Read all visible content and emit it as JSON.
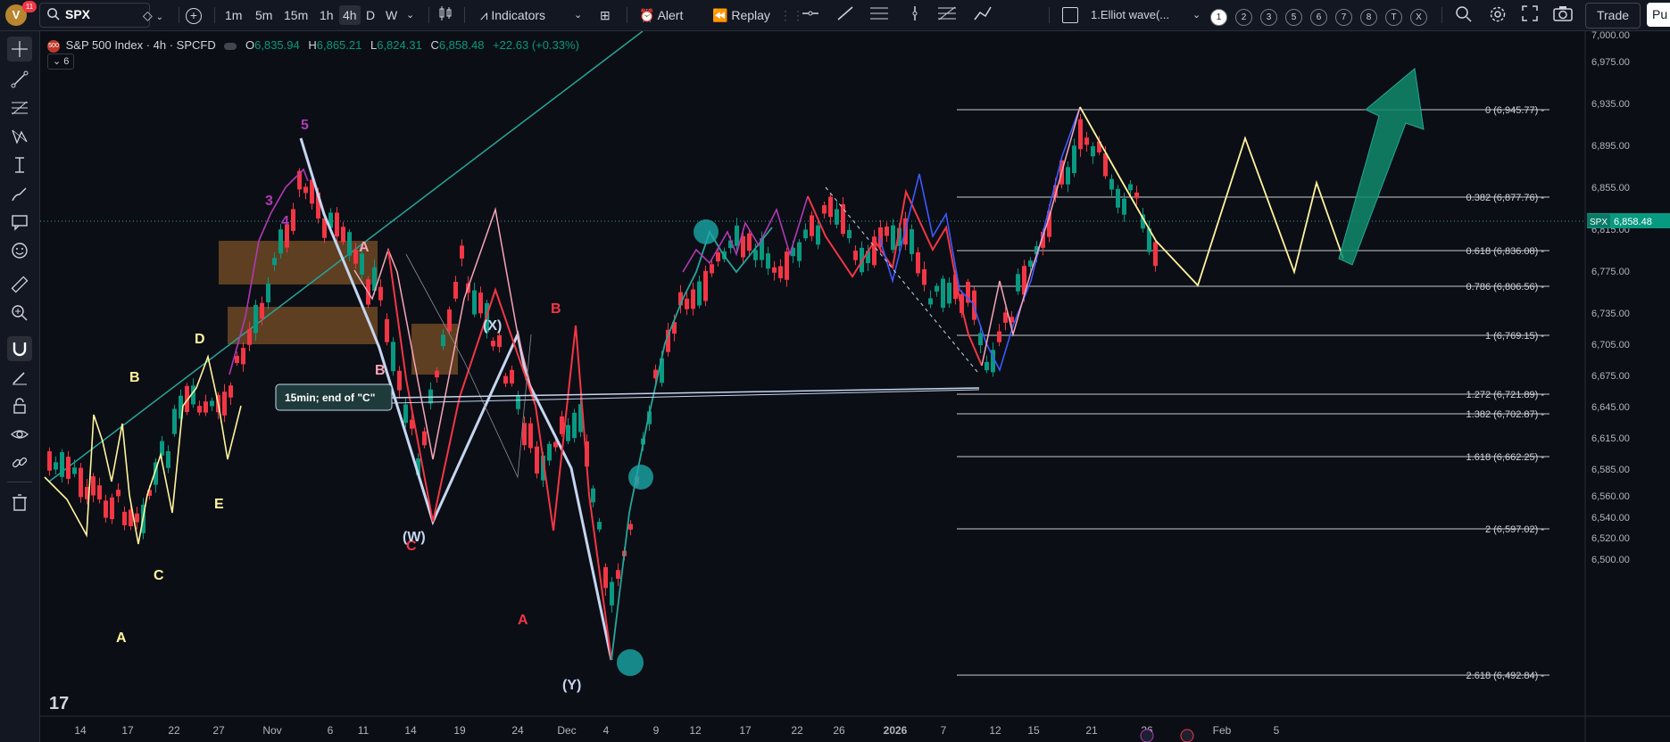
{
  "topbar": {
    "avatar_letter": "V",
    "notif_count": "11",
    "symbol": "SPX",
    "timeframes": [
      "1m",
      "5m",
      "15m",
      "1h",
      "4h",
      "D",
      "W"
    ],
    "active_timeframe": "4h",
    "indicators_label": "Indicators",
    "alert_label": "Alert",
    "replay_label": "Replay",
    "layout_name": "1.Elliot wave(...",
    "layout_tabs": [
      "1",
      "2",
      "3",
      "5",
      "6",
      "7",
      "8",
      "T",
      "X"
    ],
    "trade_label": "Trade",
    "publish_label": "Pu"
  },
  "legend": {
    "title": "S&P 500 Index · 4h · SPCFD",
    "o_label": "O",
    "o": "6,835.94",
    "h_label": "H",
    "h": "6,865.21",
    "l_label": "L",
    "l": "6,824.31",
    "c_label": "C",
    "c": "6,858.48",
    "change": "+22.63 (+0.33%)",
    "indicator_count": "6"
  },
  "price_axis": {
    "ticks": [
      "7,000.00",
      "6,975.00",
      "6,935.00",
      "6,895.00",
      "6,855.00",
      "6,815.00",
      "6,775.00",
      "6,735.00",
      "6,705.00",
      "6,675.00",
      "6,645.00",
      "6,615.00",
      "6,585.00",
      "6,560.00",
      "6,540.00",
      "6,520.00",
      "6,500.00"
    ],
    "current_symbol": "SPX",
    "current_price": "6,858.48"
  },
  "time_axis": {
    "labels": [
      "14",
      "17",
      "22",
      "27",
      "Nov",
      "6",
      "11",
      "14",
      "19",
      "24",
      "Dec",
      "4",
      "9",
      "12",
      "17",
      "22",
      "26",
      "2026",
      "7",
      "12",
      "15",
      "21",
      "26",
      "Feb",
      "5"
    ]
  },
  "fib_levels": [
    {
      "label": "0 (6,945.77)"
    },
    {
      "label": "0.382 (6,877.76)"
    },
    {
      "label": "0.618 (6,836.08)"
    },
    {
      "label": "0.786 (6,806.56)"
    },
    {
      "label": "1 (6,769.15)"
    },
    {
      "label": "1.272 (6,721.89)"
    },
    {
      "label": "1.382 (6,702.87)"
    },
    {
      "label": "1.618 (6,662.25)"
    },
    {
      "label": "2 (6,597.02)"
    },
    {
      "label": "2.618 (6,492.84)"
    }
  ],
  "annotation_note": "15min; end of \"C\"",
  "colors": {
    "bg": "#0c0e15",
    "up": "#089981",
    "down": "#f23645",
    "wave_pink": "#f7a6b8",
    "wave_yellow": "#fff59d",
    "wave_white": "#c5d6f0",
    "wave_purple": "#b03ab5",
    "wave_blue": "#3d5afe",
    "trend_teal": "#26a69a",
    "box_brown": "#7a5025"
  },
  "wave_labels": [
    {
      "text": "A",
      "color": "#fff59d"
    },
    {
      "text": "B",
      "color": "#fff59d"
    },
    {
      "text": "C",
      "color": "#fff59d"
    },
    {
      "text": "D",
      "color": "#fff59d"
    },
    {
      "text": "E",
      "color": "#fff59d"
    },
    {
      "text": "5",
      "color": "#b03ab5"
    },
    {
      "text": "3",
      "color": "#b03ab5"
    },
    {
      "text": "4",
      "color": "#b03ab5"
    },
    {
      "text": "A",
      "color": "#f7a6b8"
    },
    {
      "text": "B",
      "color": "#f7a6b8"
    },
    {
      "text": "C",
      "color": "#f23645"
    },
    {
      "text": "(W)",
      "color": "#c5d6f0"
    },
    {
      "text": "(X)",
      "color": "#c5d6f0"
    },
    {
      "text": "(Y)",
      "color": "#c5d6f0"
    },
    {
      "text": "B",
      "color": "#f23645"
    },
    {
      "text": "A",
      "color": "#f23645"
    }
  ]
}
